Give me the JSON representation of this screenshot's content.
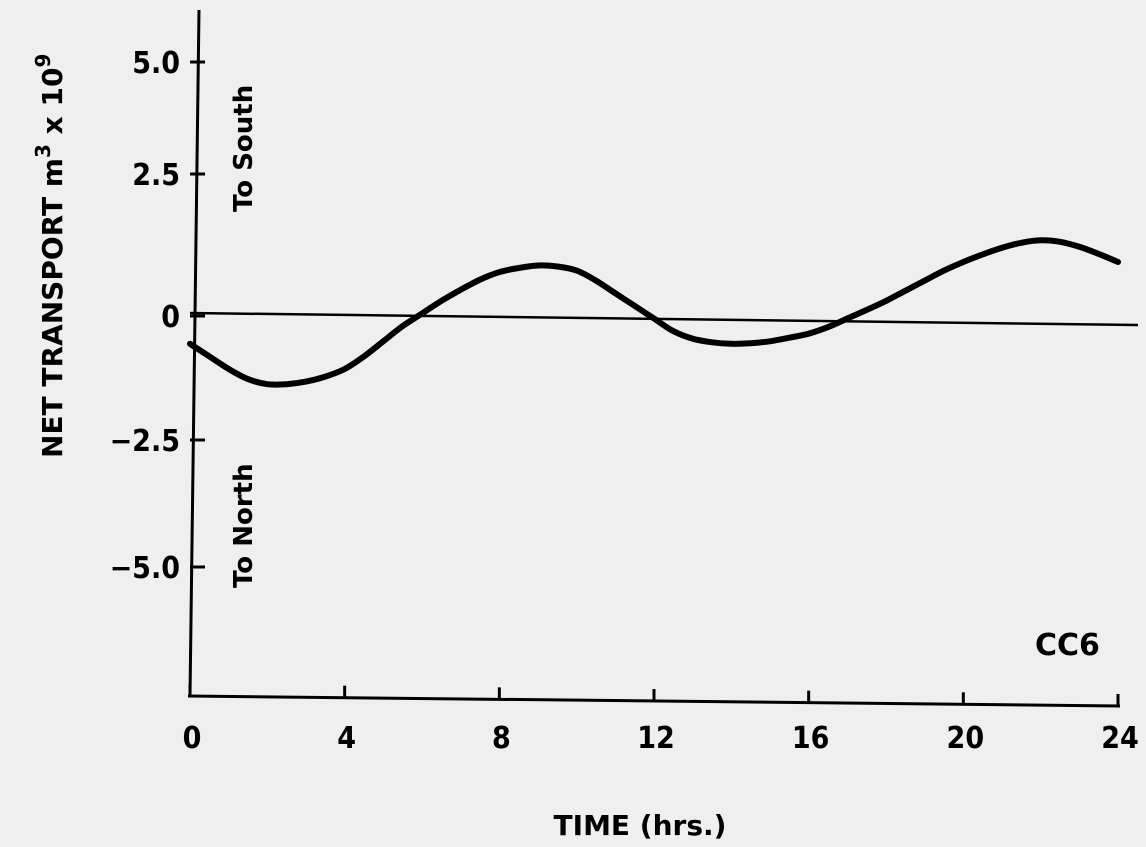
{
  "chart_data": {
    "type": "line",
    "title": "",
    "xlabel": "TIME (hrs.)",
    "ylabel_parts": [
      "NET TRANSPORT  m",
      "3",
      " x 10",
      "9"
    ],
    "xlim": [
      0,
      24
    ],
    "ylim": [
      -7.5,
      6
    ],
    "x_ticks": [
      0,
      4,
      8,
      12,
      16,
      20,
      24
    ],
    "x_tick_labels": [
      "0",
      "4",
      "8",
      "12",
      "16",
      "20",
      "24"
    ],
    "y_ticks": [
      5.0,
      2.5,
      0,
      -2.5,
      -5.0
    ],
    "y_tick_labels": [
      "5.0",
      "2.5",
      "0",
      "−2.5",
      "−5.0"
    ],
    "direction_labels": {
      "upper": "To  South",
      "lower": "To  North"
    },
    "annotation": "CC6",
    "grid": false,
    "legend": "none",
    "series": [
      {
        "x": [
          0,
          0.5,
          1,
          1.5,
          2,
          2.5,
          3,
          3.5,
          4,
          4.5,
          5,
          5.5,
          6,
          6.5,
          7,
          7.5,
          8,
          8.5,
          9,
          9.5,
          10,
          10.5,
          11,
          11.5,
          12,
          12.5,
          13,
          13.5,
          14,
          14.5,
          15,
          15.5,
          16,
          16.5,
          17,
          17.5,
          18,
          18.5,
          19,
          19.5,
          20,
          20.5,
          21,
          21.5,
          22,
          22.5,
          23,
          23.5,
          24
        ],
        "y": [
          -0.55,
          -0.8,
          -1.05,
          -1.25,
          -1.35,
          -1.35,
          -1.3,
          -1.2,
          -1.05,
          -0.8,
          -0.5,
          -0.2,
          0.05,
          0.3,
          0.52,
          0.72,
          0.87,
          0.95,
          1.0,
          0.98,
          0.9,
          0.7,
          0.45,
          0.2,
          -0.05,
          -0.3,
          -0.45,
          -0.52,
          -0.55,
          -0.54,
          -0.5,
          -0.43,
          -0.35,
          -0.22,
          -0.05,
          0.12,
          0.3,
          0.5,
          0.7,
          0.9,
          1.07,
          1.22,
          1.35,
          1.45,
          1.5,
          1.47,
          1.37,
          1.23,
          1.07
        ]
      }
    ],
    "colors": {
      "background": "#efefef",
      "ink": "#000000"
    }
  }
}
